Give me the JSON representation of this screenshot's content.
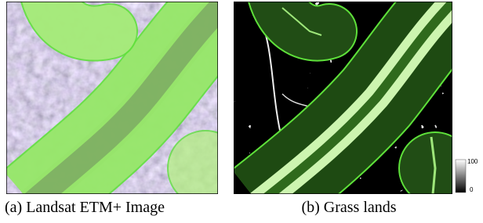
{
  "figure": {
    "panels": [
      {
        "caption": "(a) Landsat ETM+ Image"
      },
      {
        "caption": "(b) Grass lands"
      }
    ],
    "colorbar": {
      "top_label": "100",
      "bottom_label": "0"
    }
  }
}
